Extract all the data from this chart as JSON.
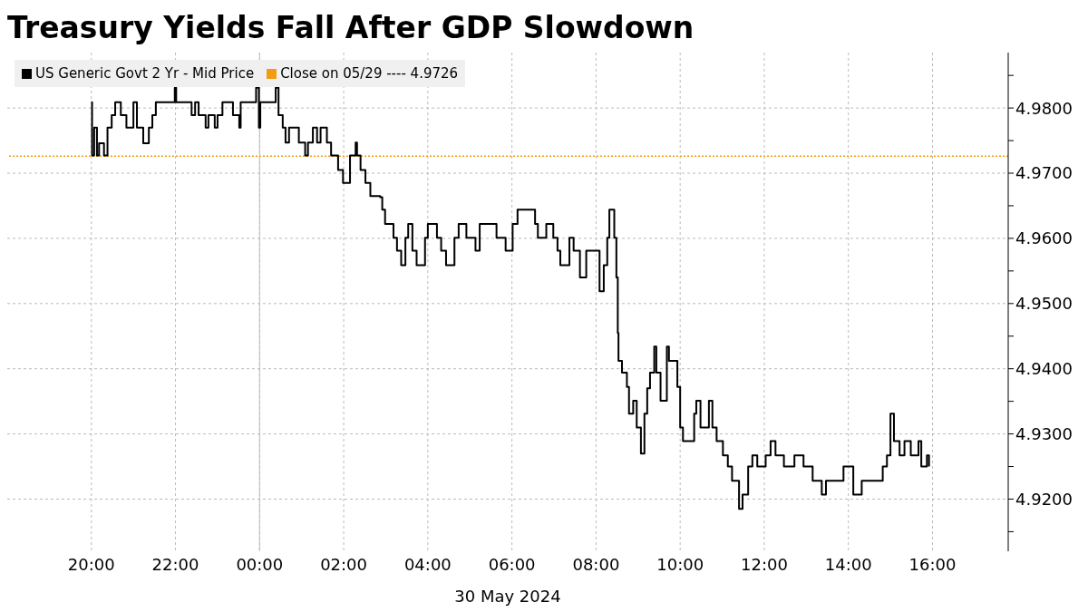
{
  "chart_data": {
    "type": "step",
    "title": "Treasury Yields Fall After GDP Slowdown",
    "xlabel": "30 May 2024",
    "x": [
      "2024-05-29T20:00",
      "2024-05-29T20:01",
      "2024-05-29T20:04",
      "2024-05-29T20:08",
      "2024-05-29T20:11",
      "2024-05-29T20:18",
      "2024-05-29T20:23",
      "2024-05-29T20:29",
      "2024-05-29T20:34",
      "2024-05-29T20:42",
      "2024-05-29T20:50",
      "2024-05-29T21:00",
      "2024-05-29T21:05",
      "2024-05-29T21:14",
      "2024-05-29T21:22",
      "2024-05-29T21:27",
      "2024-05-29T21:32",
      "2024-05-29T21:56",
      "2024-05-29T21:59",
      "2024-05-29T22:01",
      "2024-05-29T22:23",
      "2024-05-29T22:28",
      "2024-05-29T22:33",
      "2024-05-29T22:43",
      "2024-05-29T22:47",
      "2024-05-29T22:56",
      "2024-05-29T23:00",
      "2024-05-29T23:07",
      "2024-05-29T23:22",
      "2024-05-29T23:31",
      "2024-05-29T23:33",
      "2024-05-29T23:55",
      "2024-05-29T23:59",
      "2024-05-30T00:01",
      "2024-05-30T00:23",
      "2024-05-30T00:27",
      "2024-05-30T00:33",
      "2024-05-30T00:37",
      "2024-05-30T00:42",
      "2024-05-30T00:56",
      "2024-05-30T01:05",
      "2024-05-30T01:09",
      "2024-05-30T01:16",
      "2024-05-30T01:22",
      "2024-05-30T01:27",
      "2024-05-30T01:36",
      "2024-05-30T01:42",
      "2024-05-30T01:52",
      "2024-05-30T01:59",
      "2024-05-30T02:09",
      "2024-05-30T02:17",
      "2024-05-30T02:19",
      "2024-05-30T02:24",
      "2024-05-30T02:31",
      "2024-05-30T02:38",
      "2024-05-30T02:52",
      "2024-05-30T02:55",
      "2024-05-30T02:59",
      "2024-05-30T03:11",
      "2024-05-30T03:16",
      "2024-05-30T03:22",
      "2024-05-30T03:28",
      "2024-05-30T03:32",
      "2024-05-30T03:38",
      "2024-05-30T03:44",
      "2024-05-30T03:56",
      "2024-05-30T04:00",
      "2024-05-30T04:13",
      "2024-05-30T04:19",
      "2024-05-30T04:26",
      "2024-05-30T04:38",
      "2024-05-30T04:44",
      "2024-05-30T04:55",
      "2024-05-30T05:08",
      "2024-05-30T05:14",
      "2024-05-30T05:38",
      "2024-05-30T05:51",
      "2024-05-30T06:01",
      "2024-05-30T06:08",
      "2024-05-30T06:33",
      "2024-05-30T06:37",
      "2024-05-30T06:49",
      "2024-05-30T06:59",
      "2024-05-30T07:05",
      "2024-05-30T07:09",
      "2024-05-30T07:22",
      "2024-05-30T07:28",
      "2024-05-30T07:37",
      "2024-05-30T07:46",
      "2024-05-30T07:59",
      "2024-05-30T08:05",
      "2024-05-30T08:11",
      "2024-05-30T08:16",
      "2024-05-30T08:19",
      "2024-05-30T08:26",
      "2024-05-30T08:29",
      "2024-05-30T08:31",
      "2024-05-30T08:32",
      "2024-05-30T08:37",
      "2024-05-30T08:44",
      "2024-05-30T08:47",
      "2024-05-30T08:53",
      "2024-05-30T08:58",
      "2024-05-30T09:04",
      "2024-05-30T09:09",
      "2024-05-30T09:13",
      "2024-05-30T09:17",
      "2024-05-30T09:23",
      "2024-05-30T09:26",
      "2024-05-30T09:32",
      "2024-05-30T09:41",
      "2024-05-30T09:44",
      "2024-05-30T09:56",
      "2024-05-30T10:00",
      "2024-05-30T10:04",
      "2024-05-30T10:20",
      "2024-05-30T10:23",
      "2024-05-30T10:29",
      "2024-05-30T10:41",
      "2024-05-30T10:46",
      "2024-05-30T10:52",
      "2024-05-30T11:01",
      "2024-05-30T11:08",
      "2024-05-30T11:14",
      "2024-05-30T11:24",
      "2024-05-30T11:29",
      "2024-05-30T11:37",
      "2024-05-30T11:43",
      "2024-05-30T11:50",
      "2024-05-30T12:02",
      "2024-05-30T12:09",
      "2024-05-30T12:16",
      "2024-05-30T12:28",
      "2024-05-30T12:43",
      "2024-05-30T12:56",
      "2024-05-30T13:09",
      "2024-05-30T13:22",
      "2024-05-30T13:28",
      "2024-05-30T13:41",
      "2024-05-30T13:53",
      "2024-05-30T14:07",
      "2024-05-30T14:19",
      "2024-05-30T14:38",
      "2024-05-30T14:49",
      "2024-05-30T14:55",
      "2024-05-30T15:00",
      "2024-05-30T15:05",
      "2024-05-30T15:13",
      "2024-05-30T15:20",
      "2024-05-30T15:29",
      "2024-05-30T15:40",
      "2024-05-30T15:44",
      "2024-05-30T15:52",
      "2024-05-30T15:55"
    ],
    "series": [
      {
        "name": "US Generic Govt 2 Yr - Mid Price",
        "color": "#000000",
        "values": [
          4.9809,
          4.9727,
          4.977,
          4.9727,
          4.9746,
          4.9727,
          4.977,
          4.9789,
          4.9809,
          4.9789,
          4.977,
          4.9809,
          4.977,
          4.9746,
          4.977,
          4.9789,
          4.9809,
          4.9809,
          4.9831,
          4.9809,
          4.9789,
          4.9809,
          4.9789,
          4.977,
          4.9789,
          4.977,
          4.9789,
          4.9809,
          4.9789,
          4.977,
          4.9809,
          4.9831,
          4.977,
          4.9809,
          4.9831,
          4.9789,
          4.977,
          4.9747,
          4.977,
          4.9747,
          4.9727,
          4.9747,
          4.977,
          4.9747,
          4.977,
          4.9747,
          4.9727,
          4.9705,
          4.9685,
          4.9727,
          4.9747,
          4.9727,
          4.9705,
          4.9685,
          4.9665,
          4.9663,
          4.9644,
          4.9622,
          4.9601,
          4.9581,
          4.9559,
          4.9601,
          4.9622,
          4.9581,
          4.9559,
          4.9601,
          4.9622,
          4.9601,
          4.9581,
          4.9559,
          4.9601,
          4.9622,
          4.9601,
          4.9581,
          4.9622,
          4.9601,
          4.9581,
          4.9622,
          4.9644,
          4.9622,
          4.9601,
          4.9622,
          4.9601,
          4.9581,
          4.9559,
          4.9601,
          4.9581,
          4.954,
          4.9581,
          4.9581,
          4.9519,
          4.9559,
          4.9601,
          4.9644,
          4.9601,
          4.954,
          4.9455,
          4.9412,
          4.9394,
          4.9372,
          4.9331,
          4.9351,
          4.931,
          4.927,
          4.9331,
          4.937,
          4.9394,
          4.9434,
          4.9394,
          4.9351,
          4.9434,
          4.9412,
          4.9372,
          4.931,
          4.9289,
          4.9331,
          4.9351,
          4.931,
          4.9351,
          4.931,
          4.9289,
          4.9267,
          4.925,
          4.9228,
          4.9185,
          4.9207,
          4.925,
          4.9267,
          4.925,
          4.9267,
          4.9289,
          4.9267,
          4.925,
          4.9267,
          4.925,
          4.9228,
          4.9207,
          4.9228,
          4.9228,
          4.925,
          4.9207,
          4.9228,
          4.9228,
          4.925,
          4.9267,
          4.9331,
          4.9289,
          4.9267,
          4.9289,
          4.9267,
          4.9289,
          4.925,
          4.9267,
          4.925
        ]
      }
    ],
    "xlim": [
      "2024-05-29T18:00",
      "2024-05-30T17:48"
    ],
    "xticks": [
      {
        "value": "2024-05-29T20:00",
        "label": "20:00"
      },
      {
        "value": "2024-05-29T22:00",
        "label": "22:00"
      },
      {
        "value": "2024-05-30T00:00",
        "label": "00:00"
      },
      {
        "value": "2024-05-30T02:00",
        "label": "02:00"
      },
      {
        "value": "2024-05-30T04:00",
        "label": "04:00"
      },
      {
        "value": "2024-05-30T06:00",
        "label": "06:00"
      },
      {
        "value": "2024-05-30T08:00",
        "label": "08:00"
      },
      {
        "value": "2024-05-30T10:00",
        "label": "10:00"
      },
      {
        "value": "2024-05-30T12:00",
        "label": "12:00"
      },
      {
        "value": "2024-05-30T14:00",
        "label": "14:00"
      },
      {
        "value": "2024-05-30T16:00",
        "label": "16:00"
      }
    ],
    "ylim": [
      4.912,
      4.9885
    ],
    "yticks": [
      {
        "value": 4.915,
        "label": null
      },
      {
        "value": 4.92,
        "label": "4.9200"
      },
      {
        "value": 4.925,
        "label": null
      },
      {
        "value": 4.93,
        "label": "4.9300"
      },
      {
        "value": 4.935,
        "label": null
      },
      {
        "value": 4.94,
        "label": "4.9400"
      },
      {
        "value": 4.945,
        "label": null
      },
      {
        "value": 4.95,
        "label": "4.9500"
      },
      {
        "value": 4.955,
        "label": null
      },
      {
        "value": 4.96,
        "label": "4.9600"
      },
      {
        "value": 4.965,
        "label": null
      },
      {
        "value": 4.97,
        "label": "4.9700"
      },
      {
        "value": 4.975,
        "label": null
      },
      {
        "value": 4.98,
        "label": "4.9800"
      },
      {
        "value": 4.985,
        "label": null
      }
    ],
    "ref_lines": [
      {
        "axis": "y",
        "value": 4.9726,
        "label": "Close on 05/29 ---- 4.9726",
        "color": "#f39c12",
        "line_style": "dotted"
      },
      {
        "axis": "x",
        "value": "2024-05-30T00:00",
        "color": "#bbbbbb",
        "line_style": "solid"
      }
    ],
    "grid": true,
    "legend": "top left",
    "marker": "none",
    "line_style": "solid"
  }
}
